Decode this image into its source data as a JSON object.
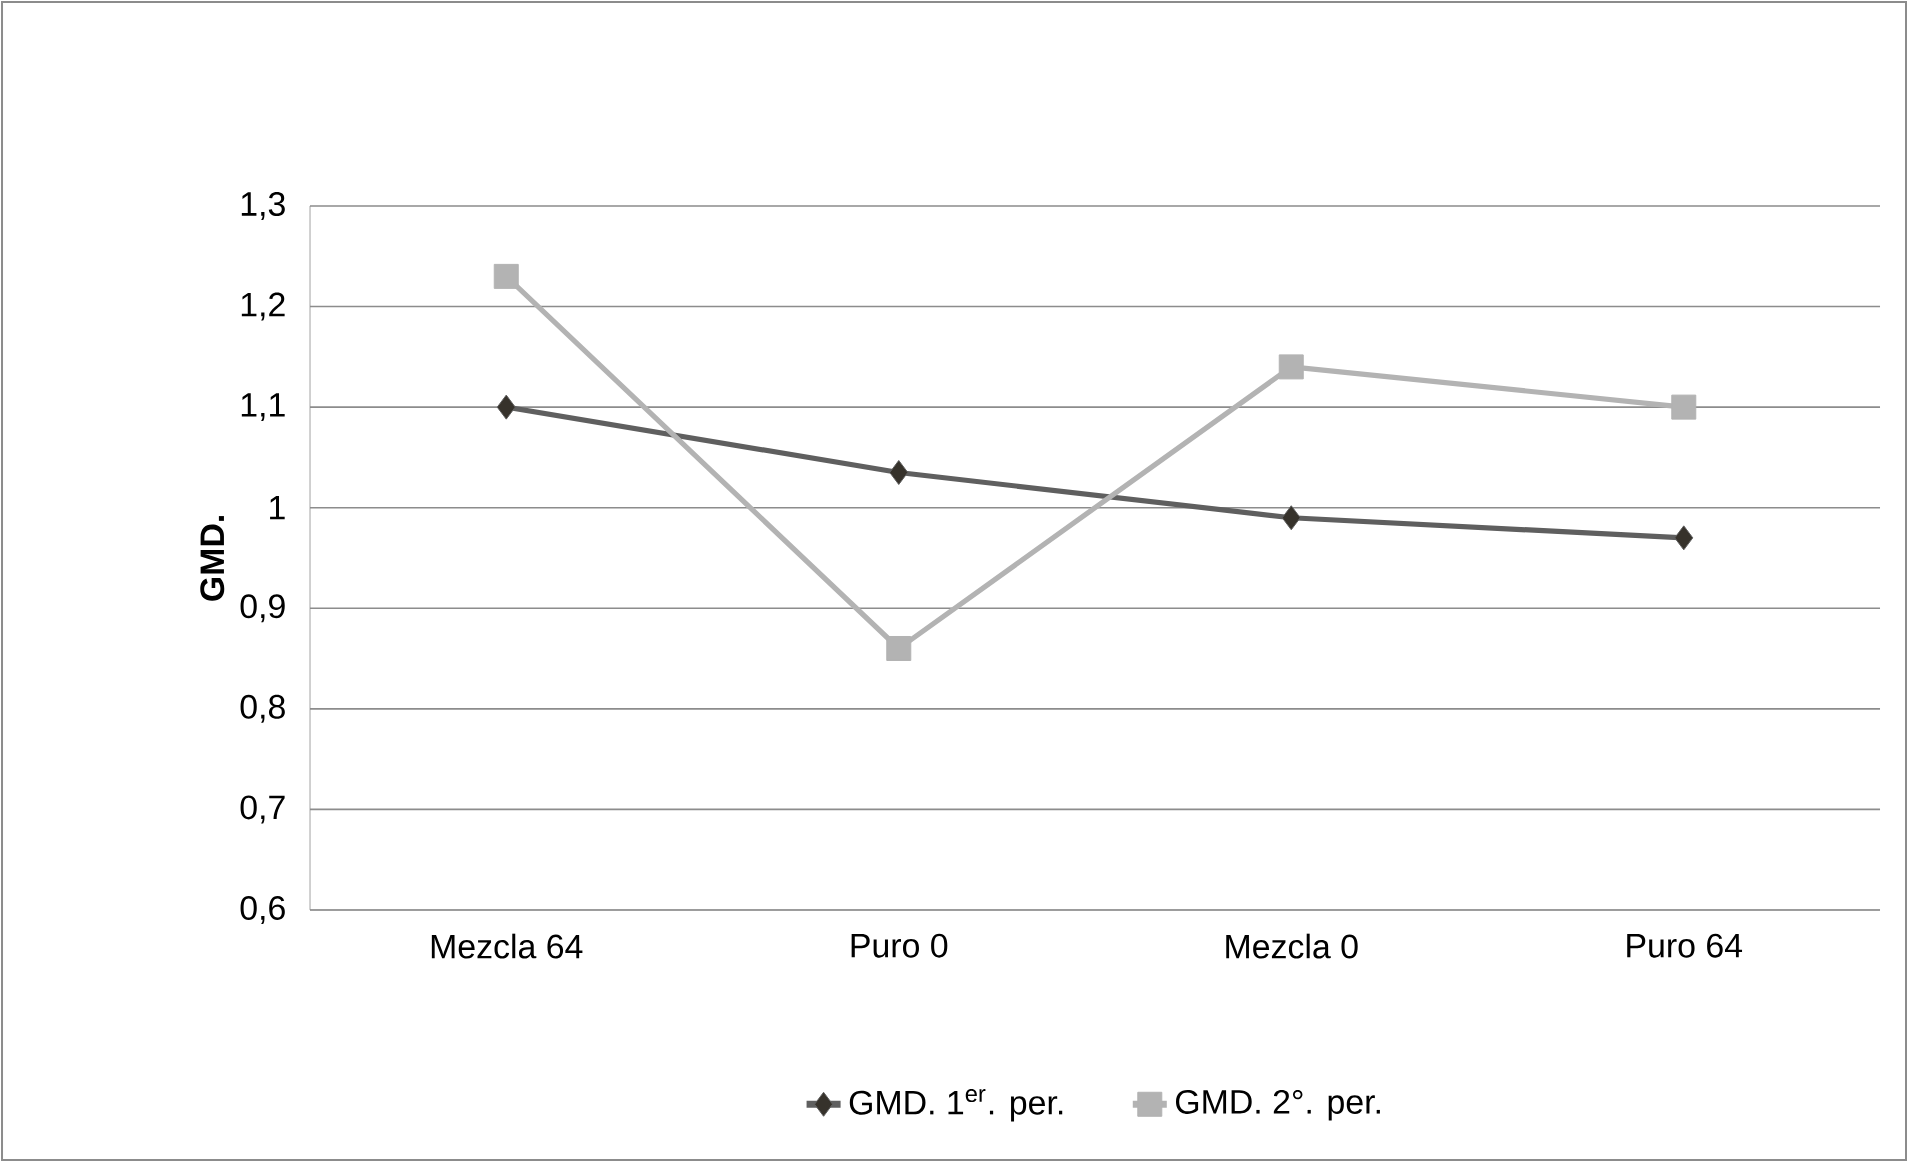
{
  "chart_data": {
    "type": "line",
    "ylabel": "GMD.",
    "categories": [
      "Mezcla 64",
      "Puro 0",
      "Mezcla 0",
      "Puro 64"
    ],
    "series": [
      {
        "name": "GMD. 1$^{er}$. per.",
        "color": "#5f5f5f",
        "marker": "diamond",
        "values": [
          1.1,
          1.035,
          0.99,
          0.97
        ]
      },
      {
        "name": "GMD. 2°. per.",
        "color": "#b3b3b3",
        "marker": "square",
        "values": [
          1.23,
          0.86,
          1.14,
          1.1
        ]
      }
    ],
    "ylim": [
      0.6,
      1.3
    ],
    "yticks": [
      {
        "value": 0.6,
        "label": "0,6"
      },
      {
        "value": 0.7,
        "label": "0,7"
      },
      {
        "value": 0.8,
        "label": "0,8"
      },
      {
        "value": 0.9,
        "label": "0,9"
      },
      1,
      {
        "value": 1.1,
        "label": "1,1"
      },
      {
        "value": 1.2,
        "label": "1,2"
      },
      {
        "value": 1.3,
        "label": "1,3"
      }
    ],
    "grid": "y",
    "legend": "bottom",
    "line_style": "solid"
  }
}
